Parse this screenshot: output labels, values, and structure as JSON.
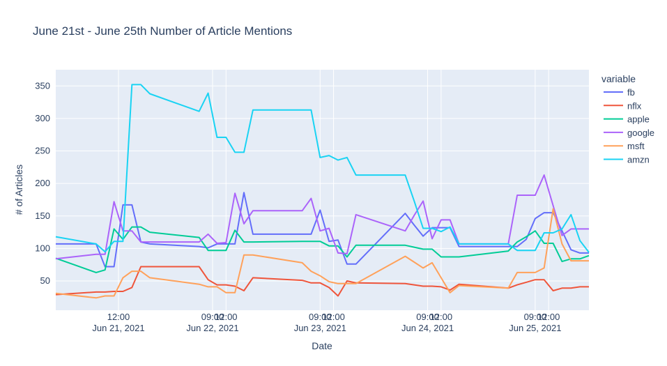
{
  "chart_data": {
    "type": "line",
    "title": "June 21st - June 25th Number of Article Mentions",
    "xlabel": "Date",
    "ylabel": "# of Articles",
    "xlim": [
      "2021-06-20 22:00",
      "2021-06-25 21:00"
    ],
    "ylim": [
      5,
      375
    ],
    "yticks": [
      50,
      100,
      150,
      200,
      250,
      300,
      350
    ],
    "xticks": [
      {
        "t": "2021-06-21 12:00",
        "line1": "12:00",
        "line2": "Jun 21, 2021"
      },
      {
        "t": "2021-06-22 09:00",
        "line1": "09:00",
        "line2": "Jun 22, 2021"
      },
      {
        "t": "2021-06-22 12:00",
        "line1": "12:00",
        "line2": ""
      },
      {
        "t": "2021-06-23 09:00",
        "line1": "09:00",
        "line2": "Jun 23, 2021"
      },
      {
        "t": "2021-06-23 12:00",
        "line1": "12:00",
        "line2": ""
      },
      {
        "t": "2021-06-24 09:00",
        "line1": "09:00",
        "line2": "Jun 24, 2021"
      },
      {
        "t": "2021-06-24 12:00",
        "line1": "12:00",
        "line2": ""
      },
      {
        "t": "2021-06-25 09:00",
        "line1": "09:00",
        "line2": "Jun 25, 2021"
      },
      {
        "t": "2021-06-25 12:00",
        "line1": "12:00",
        "line2": ""
      }
    ],
    "x": [
      "2021-06-20 22:00",
      "2021-06-21 07:00",
      "2021-06-21 09:00",
      "2021-06-21 11:00",
      "2021-06-21 13:00",
      "2021-06-21 15:00",
      "2021-06-21 17:00",
      "2021-06-21 19:00",
      "2021-06-22 06:00",
      "2021-06-22 08:00",
      "2021-06-22 10:00",
      "2021-06-22 12:00",
      "2021-06-22 14:00",
      "2021-06-22 16:00",
      "2021-06-22 18:00",
      "2021-06-23 05:00",
      "2021-06-23 07:00",
      "2021-06-23 09:00",
      "2021-06-23 11:00",
      "2021-06-23 13:00",
      "2021-06-23 15:00",
      "2021-06-23 17:00",
      "2021-06-24 04:00",
      "2021-06-24 06:00",
      "2021-06-24 08:00",
      "2021-06-24 10:00",
      "2021-06-24 12:00",
      "2021-06-24 14:00",
      "2021-06-24 16:00",
      "2021-06-25 03:00",
      "2021-06-25 05:00",
      "2021-06-25 07:00",
      "2021-06-25 09:00",
      "2021-06-25 11:00",
      "2021-06-25 13:00",
      "2021-06-25 15:00",
      "2021-06-25 17:00",
      "2021-06-25 19:00",
      "2021-06-25 21:00"
    ],
    "legend_title": "variable",
    "legend_position": "right",
    "grid": true,
    "series": [
      {
        "name": "fb",
        "color": "#636efa",
        "values": [
          107,
          107,
          72,
          72,
          167,
          167,
          110,
          107,
          103,
          101,
          107,
          107,
          107,
          186,
          122,
          122,
          122,
          159,
          111,
          113,
          76,
          76,
          154,
          136,
          119,
          132,
          132,
          132,
          103,
          103,
          103,
          114,
          146,
          155,
          155,
          127,
          98,
          93,
          93
        ]
      },
      {
        "name": "nflx",
        "color": "#ef553b",
        "values": [
          29,
          33,
          33,
          34,
          34,
          40,
          72,
          72,
          72,
          52,
          44,
          44,
          42,
          35,
          55,
          51,
          47,
          47,
          40,
          27,
          50,
          47,
          46,
          44,
          42,
          42,
          41,
          36,
          45,
          39,
          44,
          48,
          52,
          52,
          35,
          39,
          39,
          41,
          41
        ]
      },
      {
        "name": "apple",
        "color": "#00cc96",
        "values": [
          85,
          63,
          67,
          130,
          114,
          133,
          133,
          125,
          117,
          97,
          97,
          97,
          128,
          110,
          110,
          111,
          111,
          111,
          104,
          104,
          87,
          105,
          105,
          102,
          99,
          99,
          87,
          87,
          87,
          96,
          110,
          118,
          127,
          108,
          108,
          80,
          84,
          84,
          89
        ]
      },
      {
        "name": "google",
        "color": "#ab63fa",
        "values": [
          84,
          91,
          91,
          172,
          127,
          127,
          110,
          110,
          110,
          122,
          108,
          109,
          185,
          138,
          158,
          158,
          177,
          127,
          131,
          93,
          92,
          152,
          127,
          151,
          173,
          115,
          144,
          144,
          107,
          107,
          182,
          182,
          182,
          213,
          166,
          120,
          130,
          130,
          130
        ]
      },
      {
        "name": "msft",
        "color": "#ffa15a",
        "values": [
          31,
          24,
          27,
          27,
          55,
          65,
          65,
          55,
          45,
          41,
          41,
          32,
          32,
          90,
          90,
          78,
          65,
          58,
          49,
          46,
          46,
          46,
          88,
          79,
          70,
          78,
          55,
          32,
          43,
          39,
          63,
          63,
          63,
          70,
          161,
          107,
          81,
          81,
          81
        ]
      },
      {
        "name": "amzn",
        "color": "#19d3f3",
        "values": [
          118,
          107,
          95,
          111,
          111,
          352,
          352,
          338,
          311,
          339,
          271,
          271,
          248,
          248,
          313,
          313,
          313,
          240,
          243,
          236,
          240,
          213,
          213,
          173,
          131,
          131,
          126,
          133,
          107,
          107,
          97,
          97,
          97,
          124,
          124,
          130,
          152,
          112,
          94
        ]
      }
    ]
  }
}
